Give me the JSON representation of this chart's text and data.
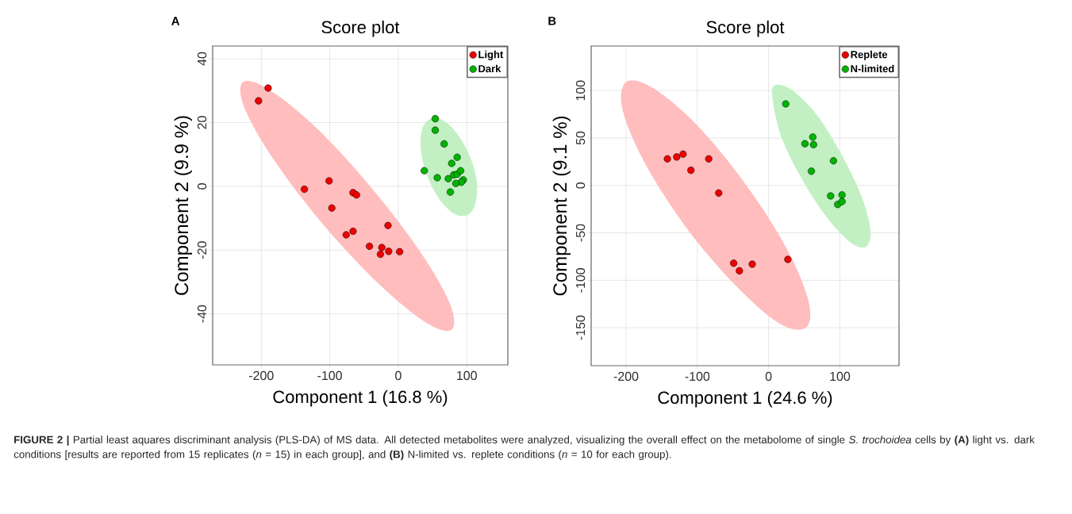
{
  "chart_data": [
    {
      "type": "scatter",
      "title": "Score plot",
      "xlabel": "Component 1 (16.8 %)",
      "ylabel": "Component 2 (9.9 %)",
      "xlim": [
        -271,
        160
      ],
      "ylim": [
        -56,
        44
      ],
      "xticks": [
        -200,
        -100,
        0,
        100
      ],
      "yticks": [
        -40,
        -20,
        0,
        20,
        40
      ],
      "grid": true,
      "legend": "top right",
      "annotations": [
        "A",
        "**FIGURE 2 |** Partial least aquares discriminant analysis (PLS-DA) of MS data. All detected metabolites were analyzed, visualizing the overall effect on the metabolome of single *S. trochoidea* cells by **(A)** light vs. dark conditions [results are reported from 15 replicates (*n* = 15) in each group], and **(B)** N-limited vs. replete conditions (*n* = 10 for each group)."
      ],
      "series": [
        {
          "type": "area",
          "color": "#ffbdbd",
          "x": [
            78,
            75,
            31,
            -41,
            -121,
            -190,
            -227,
            -224,
            -180,
            -108,
            -27,
            41
          ],
          "values": [
            -44.9,
            -36.6,
            -20.2,
            0.0,
            18.6,
            30.5,
            32.6,
            24.3,
            7.8,
            -12.4,
            -30.9,
            -42.8
          ]
        },
        {
          "type": "area",
          "color": "#c2f0c2",
          "x": [
            100,
            112,
            115,
            106,
            88,
            67,
            48,
            35,
            33,
            42,
            59,
            80
          ],
          "values": [
            -9.1,
            -5.8,
            0.7,
            8.6,
            15.9,
            20.5,
            21.3,
            18.0,
            11.5,
            3.5,
            -3.7,
            -8.4
          ]
        },
        {
          "name": "Light",
          "color": "#ee0000",
          "x": [
            -204,
            -190,
            -137,
            -101,
            -97,
            -66,
            -61,
            -76,
            -66,
            -42,
            -24,
            -26,
            -14,
            -15,
            2
          ],
          "values": [
            26.8,
            30.8,
            -0.9,
            1.7,
            -6.8,
            -2.0,
            -2.7,
            -15.2,
            -14.1,
            -18.8,
            -19.2,
            -21.3,
            -20.4,
            -12.3,
            -20.5
          ]
        },
        {
          "name": "Dark",
          "color": "#00b400",
          "x": [
            54,
            54,
            67,
            86,
            78,
            38,
            57,
            73,
            81,
            86,
            91,
            95,
            92,
            84,
            76
          ],
          "values": [
            21.2,
            17.6,
            13.3,
            9.1,
            7.2,
            4.9,
            2.7,
            2.4,
            3.6,
            3.8,
            4.9,
            2.0,
            1.3,
            0.9,
            -1.8
          ]
        }
      ]
    },
    {
      "type": "scatter",
      "title": "Score plot",
      "xlabel": "Component 1 (24.6 %)",
      "ylabel": "Component 2 (9.1 %)",
      "xlim": [
        -249,
        183
      ],
      "ylim": [
        -190,
        147
      ],
      "xticks": [
        -200,
        -100,
        0,
        100
      ],
      "yticks": [
        -150,
        -100,
        -50,
        0,
        50,
        100
      ],
      "grid": true,
      "legend": "top right",
      "annotations": [
        "B"
      ],
      "series": [
        {
          "type": "area",
          "color": "#ffbdbd",
          "x": [
            52,
            56,
            25,
            -33,
            -101,
            -163,
            -200,
            -205,
            -174,
            -116,
            -47,
            14
          ],
          "values": [
            -150,
            -122,
            -66,
            2,
            64,
            103,
            109,
            80,
            24,
            -44,
            -105,
            -145
          ]
        },
        {
          "type": "area",
          "color": "#c2f0c2",
          "x": [
            136,
            143,
            130,
            102,
            68,
            34,
            11,
            5,
            17,
            45,
            80,
            113
          ],
          "values": [
            -65,
            -47,
            -11,
            33,
            74,
            100,
            106,
            95,
            53,
            9,
            -32,
            -59
          ]
        },
        {
          "name": "Replete",
          "color": "#ee0000",
          "x": [
            -142,
            -129,
            -120,
            -109,
            -84,
            -70,
            -49,
            -41,
            -23,
            27
          ],
          "values": [
            28,
            30,
            33,
            16,
            28,
            -8,
            -82,
            -90,
            -83,
            -78
          ]
        },
        {
          "name": "N-limited",
          "color": "#00b400",
          "x": [
            24,
            62,
            51,
            63,
            91,
            60,
            87,
            103,
            97,
            103
          ],
          "values": [
            86,
            51,
            44,
            43,
            26,
            15,
            -11,
            -10,
            -20,
            -17
          ]
        }
      ]
    }
  ]
}
